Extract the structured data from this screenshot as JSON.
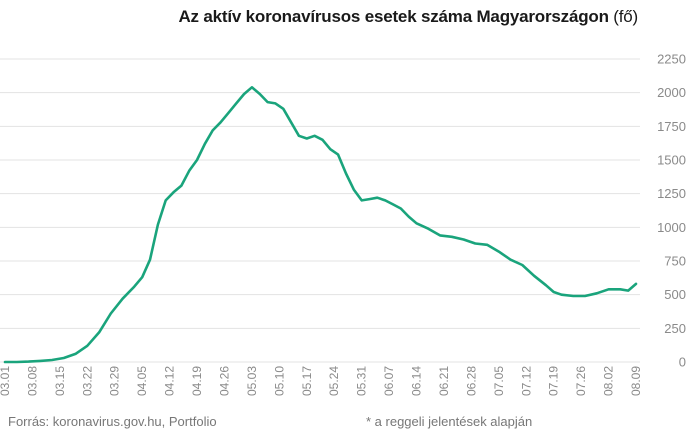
{
  "title": {
    "main": "Az aktív koronavírusos esetek száma Magyarországon",
    "unit": "(fő)"
  },
  "footer": {
    "source": "Forrás: koronavirus.gov.hu, Portfolio",
    "note": "* a reggeli jelentések alapján"
  },
  "colors": {
    "line": "#1aa47c",
    "grid": "#e3e3e3",
    "axis_text": "#8a8a8a"
  },
  "chart_data": {
    "type": "line",
    "title": "Az aktív koronavírusos esetek száma Magyarországon (fő)",
    "xlabel": "",
    "ylabel": "",
    "ylim": [
      0,
      2250
    ],
    "yticks": [
      0,
      250,
      500,
      750,
      1000,
      1250,
      1500,
      1750,
      2000,
      2250
    ],
    "ytick_labels": [
      "0",
      "250",
      "500",
      "750",
      "1000",
      "1250",
      "1500",
      "1750",
      "2000",
      "2250"
    ],
    "y_axis_position": "right",
    "grid": true,
    "legend": "none",
    "xtick_labels": [
      "03.01",
      "03.08",
      "03.15",
      "03.22",
      "03.29",
      "04.05",
      "04.12",
      "04.19",
      "04.26",
      "05.03",
      "05.10",
      "05.17",
      "05.24",
      "05.31",
      "06.07",
      "06.14",
      "06.21",
      "06.28",
      "07.05",
      "07.12",
      "07.19",
      "07.26",
      "08.02",
      "08.09"
    ],
    "series": [
      {
        "x": [
          "03.01",
          "03.04",
          "03.07",
          "03.10",
          "03.13",
          "03.16",
          "03.19",
          "03.22",
          "03.25",
          "03.28",
          "03.31",
          "04.03",
          "04.05",
          "04.07",
          "04.09",
          "04.11",
          "04.13",
          "04.15",
          "04.17",
          "04.19",
          "04.21",
          "04.23",
          "04.25",
          "04.27",
          "04.29",
          "05.01",
          "05.03",
          "05.05",
          "05.07",
          "05.09",
          "05.11",
          "05.13",
          "05.15",
          "05.17",
          "05.19",
          "05.21",
          "05.23",
          "05.25",
          "05.27",
          "05.29",
          "05.31",
          "06.02",
          "06.04",
          "06.06",
          "06.08",
          "06.10",
          "06.12",
          "06.14",
          "06.17",
          "06.20",
          "06.23",
          "06.26",
          "06.29",
          "07.02",
          "07.05",
          "07.08",
          "07.11",
          "07.14",
          "07.17",
          "07.19",
          "07.21",
          "07.24",
          "07.27",
          "07.30",
          "08.02",
          "08.05",
          "08.07",
          "08.09"
        ],
        "values": [
          0,
          0,
          3,
          8,
          15,
          30,
          60,
          120,
          220,
          360,
          470,
          560,
          630,
          760,
          1020,
          1200,
          1260,
          1310,
          1420,
          1500,
          1620,
          1720,
          1780,
          1850,
          1920,
          1990,
          2040,
          1990,
          1930,
          1920,
          1880,
          1780,
          1680,
          1660,
          1680,
          1650,
          1580,
          1540,
          1400,
          1280,
          1200,
          1210,
          1220,
          1200,
          1170,
          1140,
          1080,
          1030,
          990,
          940,
          930,
          910,
          880,
          870,
          820,
          760,
          720,
          640,
          570,
          520,
          500,
          490,
          490,
          510,
          540,
          540,
          530,
          580
        ]
      }
    ]
  }
}
